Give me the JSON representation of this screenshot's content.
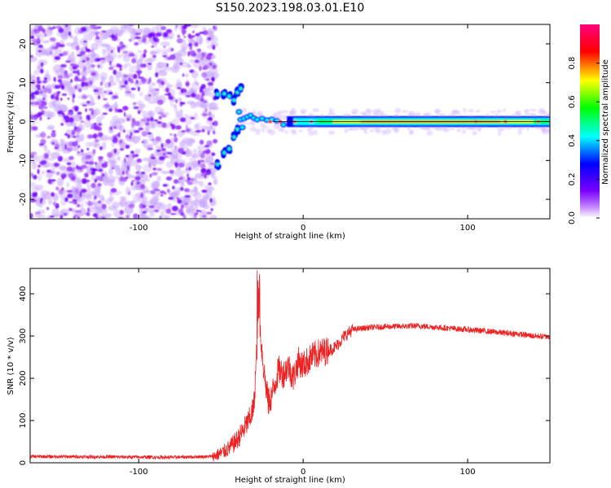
{
  "chart_data": [
    {
      "type": "heatmap",
      "title": "S150.2023.198.03.01.E10",
      "xlabel": "Height of straight line (km)",
      "ylabel": "Frequency (Hz)",
      "xlim": [
        -166,
        150
      ],
      "ylim": [
        -25,
        25
      ],
      "xticks": [
        -100,
        0,
        100
      ],
      "yticks": [
        -20,
        -10,
        0,
        10,
        20
      ],
      "colorbar": {
        "label": "Normalized spectral amplitude",
        "range": [
          0,
          1
        ],
        "ticks": [
          "0.0",
          "0.2",
          "0.4",
          "0.6",
          "0.8"
        ],
        "tick_values": [
          0,
          0.2,
          0.4,
          0.6,
          0.8
        ],
        "colormap": [
          "#ffffff",
          "#7a00ff",
          "#0000ff",
          "#00ffff",
          "#00ff00",
          "#ffff00",
          "#ff0000",
          "#ff0080"
        ]
      },
      "regions": {
        "noise": {
          "x": [
            -166,
            -53
          ],
          "y": [
            -25,
            25
          ],
          "amplitude": 0.15
        },
        "split_upper": [
          [
            -52,
            7
          ],
          [
            -48,
            7.2
          ],
          [
            -45,
            6.5
          ],
          [
            -42,
            5.5
          ],
          [
            -40,
            7.5
          ],
          [
            -38,
            8.5
          ]
        ],
        "split_lower": [
          [
            -52,
            -11
          ],
          [
            -48,
            -8
          ],
          [
            -45,
            -7
          ],
          [
            -42,
            -4
          ],
          [
            -40,
            -2
          ]
        ],
        "ridge_center": 0,
        "ridge_x": [
          -40,
          150
        ]
      }
    },
    {
      "type": "line",
      "title": "",
      "xlabel": "Height of straight line (km)",
      "ylabel": "SNR (10 * v/v)",
      "xlim": [
        -166,
        150
      ],
      "ylim": [
        0,
        460
      ],
      "xticks": [
        -100,
        0,
        100
      ],
      "yticks": [
        0,
        100,
        200,
        300,
        400
      ],
      "color": "#ee2222",
      "series": [
        {
          "x": [
            -166,
            -120,
            -80,
            -55,
            -50,
            -45,
            -40,
            -36,
            -33,
            -30,
            -27,
            -25,
            -23,
            -21,
            -19,
            -17,
            -15,
            -12,
            -9,
            -6,
            -3,
            0,
            5,
            10,
            15,
            20,
            25,
            30,
            40,
            50,
            60,
            70,
            80,
            90,
            100,
            110,
            120,
            130,
            140,
            150
          ],
          "values": [
            15,
            14,
            13,
            15,
            22,
            35,
            55,
            80,
            100,
            130,
            360,
            260,
            190,
            140,
            160,
            190,
            220,
            210,
            230,
            200,
            240,
            230,
            250,
            260,
            265,
            275,
            300,
            315,
            320,
            322,
            323,
            324,
            321,
            318,
            315,
            312,
            308,
            305,
            300,
            298
          ]
        }
      ]
    }
  ]
}
